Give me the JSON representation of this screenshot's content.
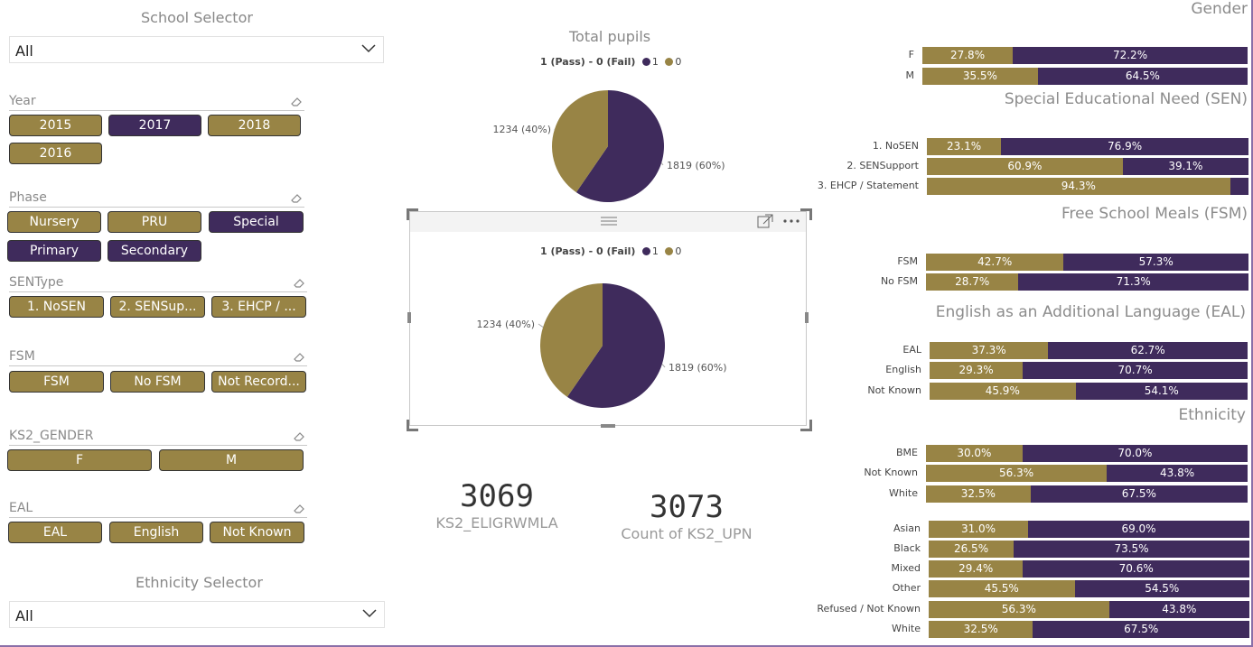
{
  "colors": {
    "gold": "#988445",
    "purple": "#3f2b5c"
  },
  "school_selector": {
    "title": "School Selector",
    "value": "All"
  },
  "ethnicity_selector": {
    "title": "Ethnicity Selector",
    "value": "All"
  },
  "slicers": {
    "year": {
      "label": "Year",
      "options": [
        "2015",
        "2017",
        "2018",
        "2016"
      ],
      "selected": [
        "2017"
      ]
    },
    "phase": {
      "label": "Phase",
      "options": [
        "Nursery",
        "PRU",
        "Special",
        "Primary",
        "Secondary"
      ],
      "selected": [
        "Special",
        "Primary",
        "Secondary"
      ]
    },
    "sentype": {
      "label": "SENType",
      "options": [
        "1. NoSEN",
        "2. SENSup...",
        "3. EHCP / ..."
      ]
    },
    "fsm": {
      "label": "FSM",
      "options": [
        "FSM",
        "No FSM",
        "Not Record..."
      ]
    },
    "gender": {
      "label": "KS2_GENDER",
      "options": [
        "F",
        "M"
      ]
    },
    "eal": {
      "label": "EAL",
      "options": [
        "EAL",
        "English",
        "Not Known"
      ]
    }
  },
  "pie_top": {
    "title": "Total pupils",
    "legend_title": "1 (Pass) - 0 (Fail)",
    "legend": [
      "1",
      "0"
    ]
  },
  "pie_bottom": {
    "legend_title": "1 (Pass) - 0 (Fail)",
    "legend": [
      "1",
      "0"
    ]
  },
  "chart_data": [
    {
      "type": "pie",
      "title": "Total pupils",
      "slices": [
        {
          "label": "1",
          "value": 1819,
          "display": "1819 (60%)"
        },
        {
          "label": "0",
          "value": 1234,
          "display": "1234 (40%)"
        }
      ]
    },
    {
      "type": "pie",
      "title": "",
      "slices": [
        {
          "label": "1",
          "value": 1819,
          "display": "1819 (60%)"
        },
        {
          "label": "0",
          "value": 1234,
          "display": "1234 (40%)"
        }
      ]
    },
    {
      "type": "bar",
      "title": "Gender",
      "categories": [
        "F",
        "M"
      ],
      "series": [
        {
          "name": "0",
          "values": [
            27.8,
            35.5
          ]
        },
        {
          "name": "1",
          "values": [
            72.2,
            64.5
          ]
        }
      ]
    },
    {
      "type": "bar",
      "title": "Special Educational Need (SEN)",
      "categories": [
        "1. NoSEN",
        "2. SENSupport",
        "3. EHCP / Statement"
      ],
      "series": [
        {
          "name": "0",
          "values": [
            23.1,
            60.9,
            94.3
          ]
        },
        {
          "name": "1",
          "values": [
            76.9,
            39.1,
            5.7
          ]
        }
      ]
    },
    {
      "type": "bar",
      "title": "Free School Meals (FSM)",
      "categories": [
        "FSM",
        "No FSM"
      ],
      "series": [
        {
          "name": "0",
          "values": [
            42.7,
            28.7
          ]
        },
        {
          "name": "1",
          "values": [
            57.3,
            71.3
          ]
        }
      ]
    },
    {
      "type": "bar",
      "title": "English as an Additional Language (EAL)",
      "categories": [
        "EAL",
        "English",
        "Not Known"
      ],
      "series": [
        {
          "name": "0",
          "values": [
            37.3,
            29.3,
            45.9
          ]
        },
        {
          "name": "1",
          "values": [
            62.7,
            70.7,
            54.1
          ]
        }
      ]
    },
    {
      "type": "bar",
      "title": "Ethnicity",
      "categories": [
        "BME",
        "Not Known",
        "White"
      ],
      "series": [
        {
          "name": "0",
          "values": [
            30.0,
            56.3,
            32.5
          ]
        },
        {
          "name": "1",
          "values": [
            70.0,
            43.8,
            67.5
          ]
        }
      ]
    },
    {
      "type": "bar",
      "title": "",
      "categories": [
        "Asian",
        "Black",
        "Mixed",
        "Other",
        "Refused / Not Known",
        "White"
      ],
      "series": [
        {
          "name": "0",
          "values": [
            31.0,
            26.5,
            29.4,
            45.5,
            56.3,
            32.5
          ]
        },
        {
          "name": "1",
          "values": [
            69.0,
            73.5,
            70.6,
            54.5,
            43.8,
            67.5
          ]
        }
      ]
    }
  ],
  "bar_labels": [
    {
      "rows": [
        [
          "27.8%",
          "72.2%"
        ],
        [
          "35.5%",
          "64.5%"
        ]
      ]
    },
    {
      "rows": [
        [
          "23.1%",
          "76.9%"
        ],
        [
          "60.9%",
          "39.1%"
        ],
        [
          "94.3%",
          ""
        ]
      ]
    },
    {
      "rows": [
        [
          "42.7%",
          "57.3%"
        ],
        [
          "28.7%",
          "71.3%"
        ]
      ]
    },
    {
      "rows": [
        [
          "37.3%",
          "62.7%"
        ],
        [
          "29.3%",
          "70.7%"
        ],
        [
          "45.9%",
          "54.1%"
        ]
      ]
    },
    {
      "rows": [
        [
          "30.0%",
          "70.0%"
        ],
        [
          "56.3%",
          "43.8%"
        ],
        [
          "32.5%",
          "67.5%"
        ]
      ]
    },
    {
      "rows": [
        [
          "31.0%",
          "69.0%"
        ],
        [
          "26.5%",
          "73.5%"
        ],
        [
          "29.4%",
          "70.6%"
        ],
        [
          "45.5%",
          "54.5%"
        ],
        [
          "56.3%",
          "43.8%"
        ],
        [
          "32.5%",
          "67.5%"
        ]
      ]
    }
  ],
  "kpis": {
    "eligible": {
      "value": "3069",
      "label": "KS2_ELIGRWMLA"
    },
    "count": {
      "value": "3073",
      "label": "Count of KS2_UPN"
    }
  }
}
